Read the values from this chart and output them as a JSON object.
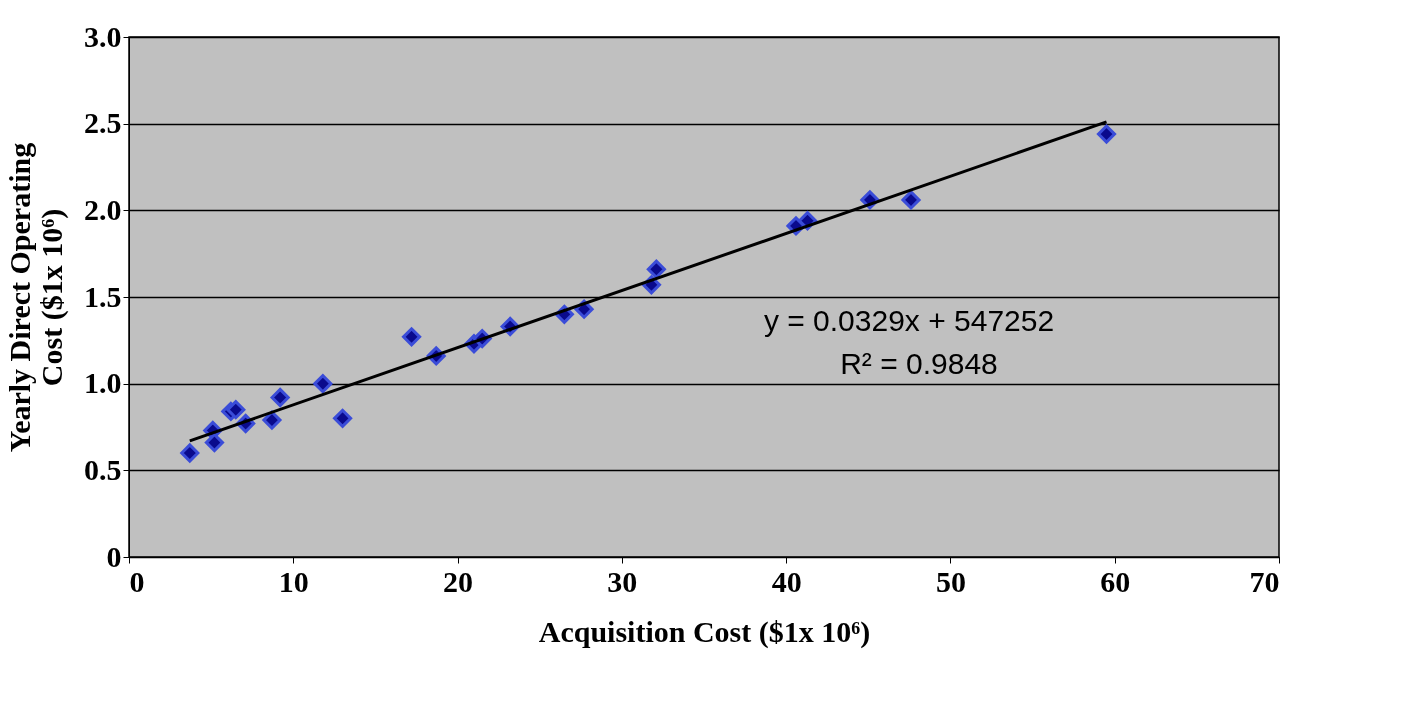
{
  "chart_data": {
    "type": "scatter",
    "xlabel": "Acquisition Cost ($1x 10⁶)",
    "ylabel": "Yearly Direct Operating\nCost ($1x 10⁶)",
    "series": [
      {
        "color": "#0a0a8c",
        "marker": "diamond",
        "x": [
          3.7,
          5.1,
          5.2,
          6.2,
          6.5,
          7.1,
          8.7,
          9.2,
          11.8,
          13.0,
          17.2,
          18.7,
          21.0,
          21.5,
          23.2,
          26.5,
          27.7,
          31.8,
          32.1,
          40.6,
          41.3,
          45.1,
          47.6,
          59.5
        ],
        "values": [
          0.6,
          0.73,
          0.66,
          0.84,
          0.85,
          0.77,
          0.79,
          0.92,
          1.0,
          0.8,
          1.27,
          1.16,
          1.23,
          1.26,
          1.33,
          1.4,
          1.43,
          1.57,
          1.66,
          1.91,
          1.94,
          2.06,
          2.06,
          2.44
        ]
      },
      {
        "type": "line",
        "color": "#000000",
        "line_style": "solid",
        "x": [
          3.7,
          59.5
        ],
        "values": [
          0.67,
          2.51
        ]
      }
    ],
    "annotations": [
      "y = 0.0329x + 547252",
      "R² = 0.9848"
    ],
    "xlim": [
      0,
      70
    ],
    "xticks": [
      0,
      10,
      20,
      30,
      40,
      50,
      60,
      70
    ],
    "ylim": [
      0,
      3.0
    ],
    "yticks": [
      {
        "value": 0,
        "label": "0"
      },
      {
        "value": 0.5,
        "label": "0.5"
      },
      {
        "value": 1.0,
        "label": "1.0"
      },
      {
        "value": 1.5,
        "label": "1.5"
      },
      {
        "value": 2.0,
        "label": "2.0"
      },
      {
        "value": 2.5,
        "label": "2.5"
      },
      {
        "value": 3.0,
        "label": "3.0"
      }
    ],
    "grid": "y",
    "legend": false
  }
}
